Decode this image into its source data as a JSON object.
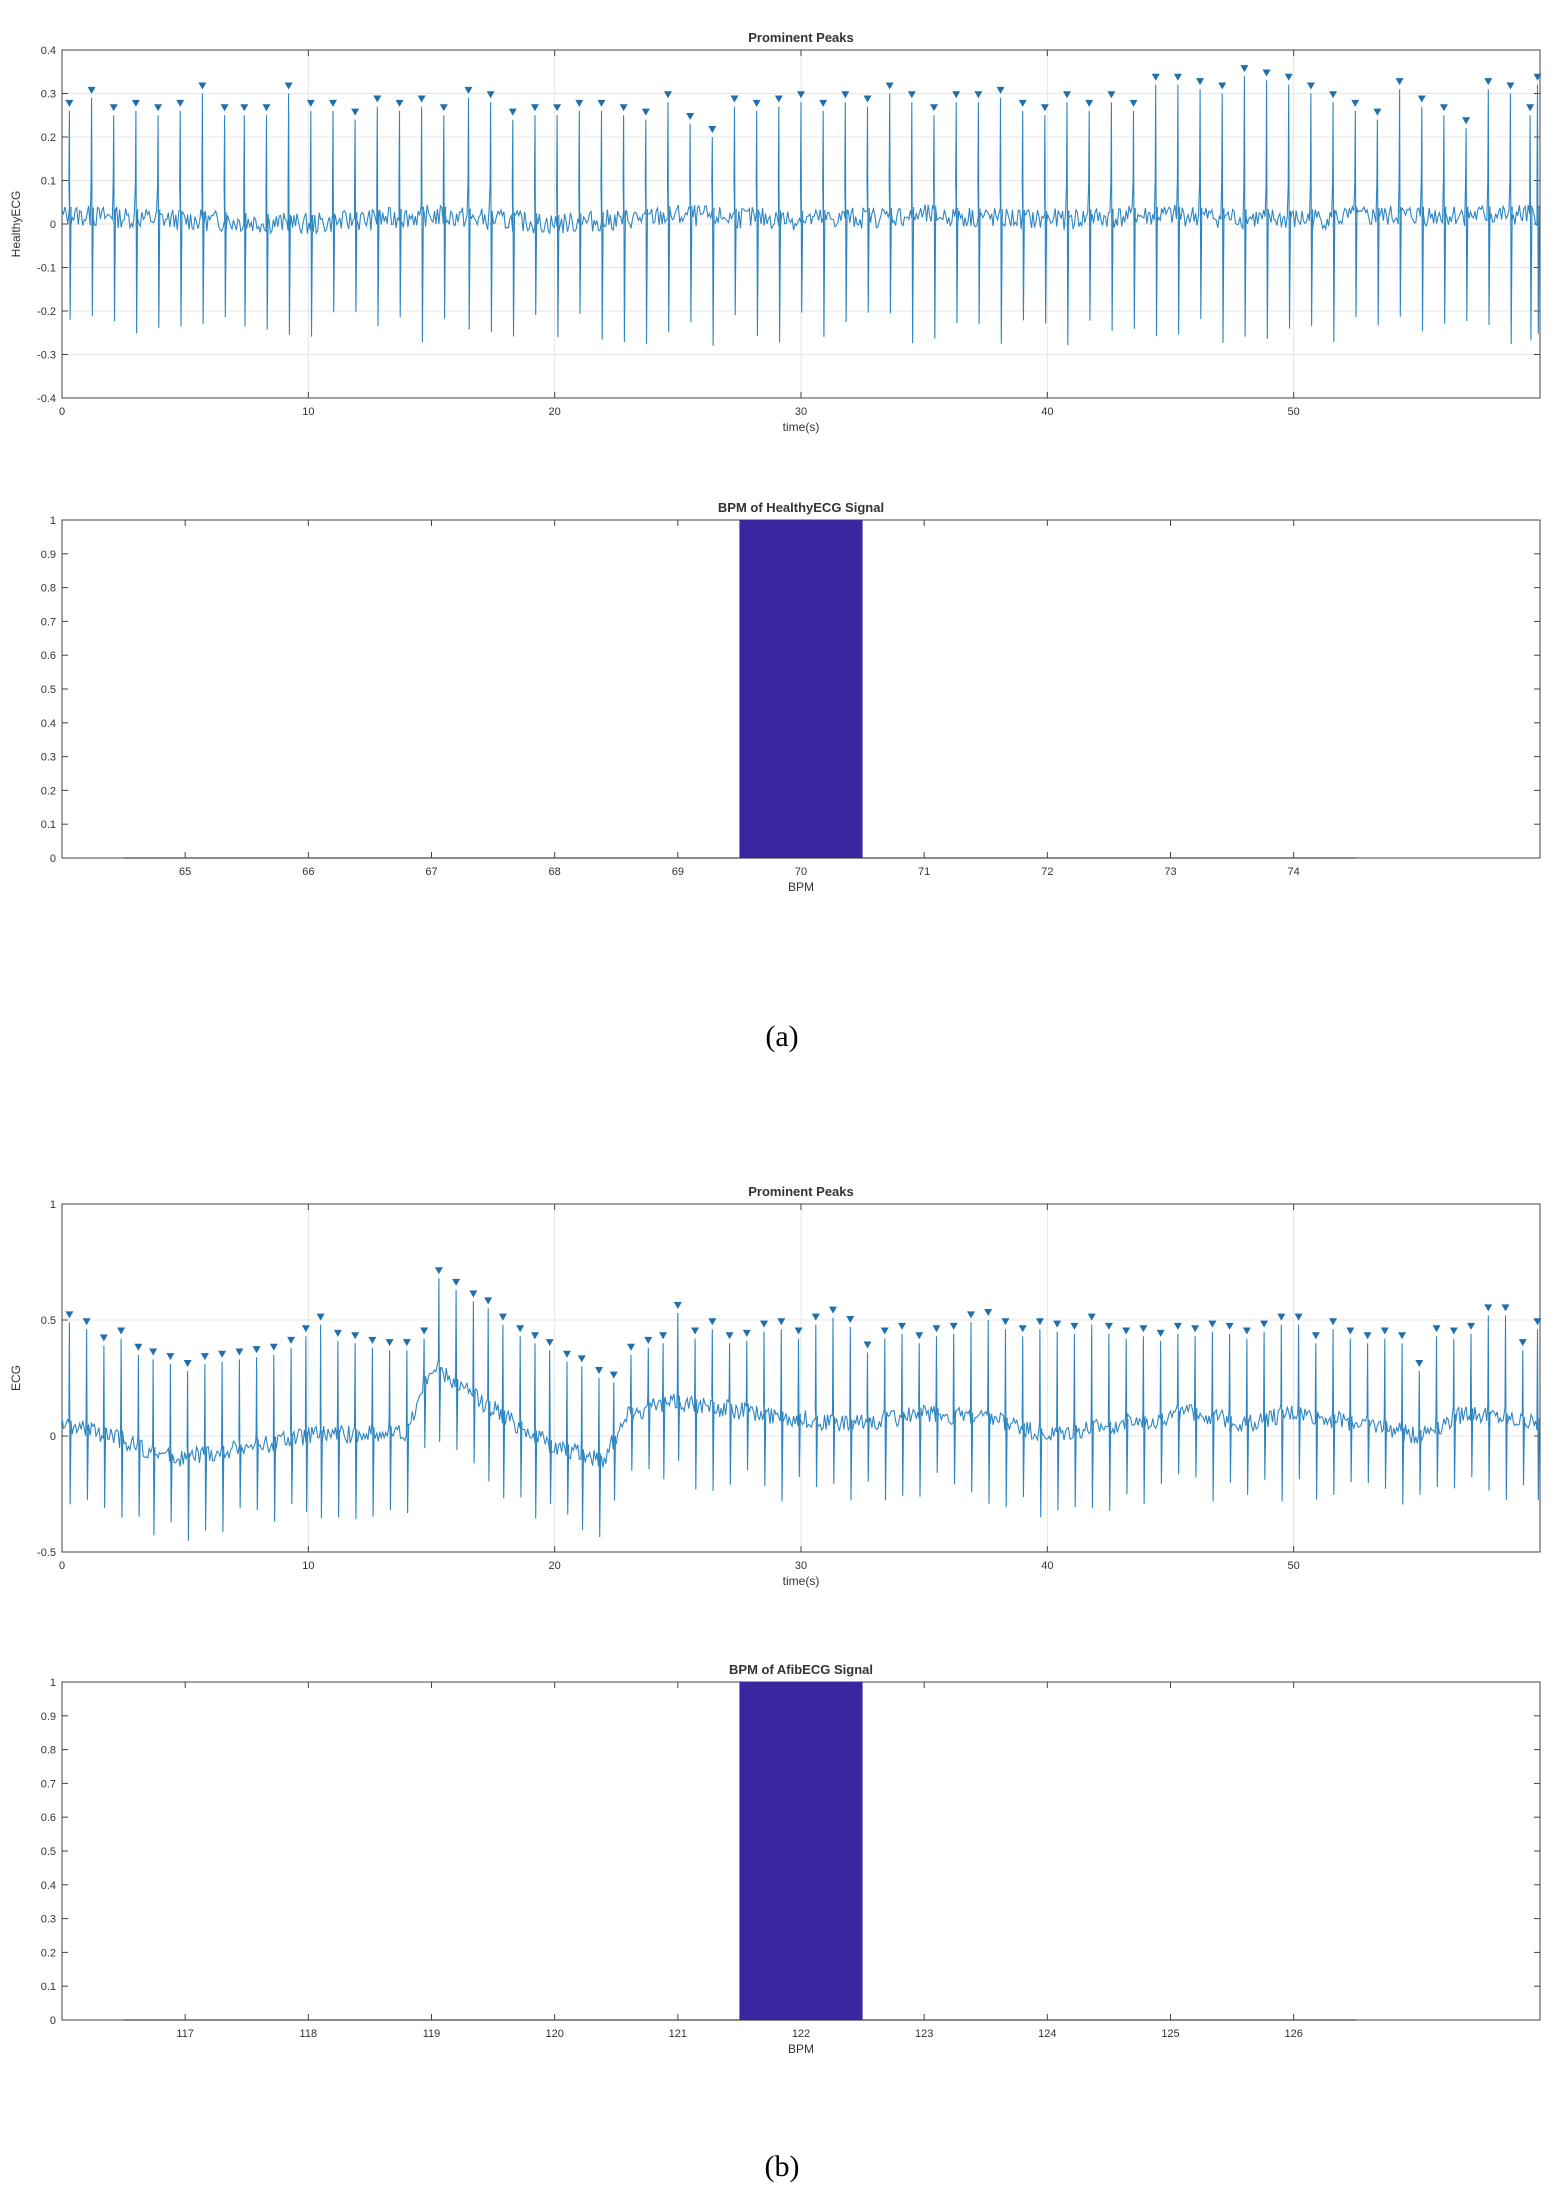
{
  "figure": {
    "caption_a": "(a)",
    "caption_b": "(b)"
  },
  "colors": {
    "signal": "#2e86c1",
    "marker": "#1f6fae",
    "bar": "#3b25a0",
    "grid": "#e6e6e6",
    "axis": "#444444",
    "text": "#333333"
  },
  "chart_data": [
    {
      "id": "healthy-ecg-peaks",
      "type": "line",
      "title": "Prominent Peaks",
      "xlabel": "time(s)",
      "ylabel": "HealthyECG",
      "xlim": [
        0,
        60
      ],
      "ylim": [
        -0.4,
        0.4
      ],
      "xticks": [
        0,
        10,
        20,
        30,
        40,
        50
      ],
      "yticks": [
        -0.4,
        -0.3,
        -0.2,
        -0.1,
        0,
        0.1,
        0.2,
        0.3,
        0.4
      ],
      "ytick_labels": [
        "-0.4",
        "-0.3",
        "-0.2",
        "-0.1",
        "0",
        "0.1",
        "0.2",
        "0.3",
        "0.4"
      ],
      "grid": true,
      "baseline": [
        [
          0,
          0.02
        ],
        [
          5,
          0.01
        ],
        [
          10,
          0.0
        ],
        [
          15,
          0.02
        ],
        [
          20,
          0.0
        ],
        [
          25,
          0.02
        ],
        [
          30,
          0.01
        ],
        [
          35,
          0.02
        ],
        [
          40,
          0.01
        ],
        [
          45,
          0.02
        ],
        [
          50,
          0.01
        ],
        [
          55,
          0.02
        ],
        [
          60,
          0.02
        ]
      ],
      "peaks": [
        [
          0.3,
          0.26
        ],
        [
          1.2,
          0.29
        ],
        [
          2.1,
          0.25
        ],
        [
          3.0,
          0.26
        ],
        [
          3.9,
          0.25
        ],
        [
          4.8,
          0.26
        ],
        [
          5.7,
          0.3
        ],
        [
          6.6,
          0.25
        ],
        [
          7.4,
          0.25
        ],
        [
          8.3,
          0.25
        ],
        [
          9.2,
          0.3
        ],
        [
          10.1,
          0.26
        ],
        [
          11.0,
          0.26
        ],
        [
          11.9,
          0.24
        ],
        [
          12.8,
          0.27
        ],
        [
          13.7,
          0.26
        ],
        [
          14.6,
          0.27
        ],
        [
          15.5,
          0.25
        ],
        [
          16.5,
          0.29
        ],
        [
          17.4,
          0.28
        ],
        [
          18.3,
          0.24
        ],
        [
          19.2,
          0.25
        ],
        [
          20.1,
          0.25
        ],
        [
          21.0,
          0.26
        ],
        [
          21.9,
          0.26
        ],
        [
          22.8,
          0.25
        ],
        [
          23.7,
          0.24
        ],
        [
          24.6,
          0.28
        ],
        [
          25.5,
          0.23
        ],
        [
          26.4,
          0.2
        ],
        [
          27.3,
          0.27
        ],
        [
          28.2,
          0.26
        ],
        [
          29.1,
          0.27
        ],
        [
          30.0,
          0.28
        ],
        [
          30.9,
          0.26
        ],
        [
          31.8,
          0.28
        ],
        [
          32.7,
          0.27
        ],
        [
          33.6,
          0.3
        ],
        [
          34.5,
          0.28
        ],
        [
          35.4,
          0.25
        ],
        [
          36.3,
          0.28
        ],
        [
          37.2,
          0.28
        ],
        [
          38.1,
          0.29
        ],
        [
          39.0,
          0.26
        ],
        [
          39.9,
          0.25
        ],
        [
          40.8,
          0.28
        ],
        [
          41.7,
          0.26
        ],
        [
          42.6,
          0.28
        ],
        [
          43.5,
          0.26
        ],
        [
          44.4,
          0.32
        ],
        [
          45.3,
          0.32
        ],
        [
          46.2,
          0.31
        ],
        [
          47.1,
          0.3
        ],
        [
          48.0,
          0.34
        ],
        [
          48.9,
          0.33
        ],
        [
          49.8,
          0.32
        ],
        [
          50.7,
          0.3
        ],
        [
          51.6,
          0.28
        ],
        [
          52.5,
          0.26
        ],
        [
          53.4,
          0.24
        ],
        [
          54.3,
          0.31
        ],
        [
          55.2,
          0.27
        ],
        [
          56.1,
          0.25
        ],
        [
          57.0,
          0.22
        ],
        [
          57.9,
          0.31
        ],
        [
          58.8,
          0.3
        ],
        [
          59.6,
          0.25
        ],
        [
          59.9,
          0.32
        ]
      ]
    },
    {
      "id": "healthy-bpm",
      "type": "bar",
      "title": "BPM of HealthyECG Signal",
      "xlabel": "BPM",
      "ylabel": "",
      "xlim": [
        64,
        76
      ],
      "ylim": [
        0,
        1
      ],
      "xticks": [
        65,
        66,
        67,
        68,
        69,
        70,
        71,
        72,
        73,
        74
      ],
      "yticks": [
        0,
        0.1,
        0.2,
        0.3,
        0.4,
        0.5,
        0.6,
        0.7,
        0.8,
        0.9,
        1
      ],
      "ytick_labels": [
        "0",
        "0.1",
        "0.2",
        "0.3",
        "0.4",
        "0.5",
        "0.6",
        "0.7",
        "0.8",
        "0.9",
        "1"
      ],
      "grid": false,
      "bars": [
        {
          "x": 70,
          "value": 1,
          "width": 1
        }
      ],
      "baseline_range": [
        64.5,
        74.5
      ]
    },
    {
      "id": "afib-ecg-peaks",
      "type": "line",
      "title": "Prominent Peaks",
      "xlabel": "time(s)",
      "ylabel": "ECG",
      "xlim": [
        0,
        60
      ],
      "ylim": [
        -0.5,
        1
      ],
      "xticks": [
        0,
        10,
        20,
        30,
        40,
        50
      ],
      "yticks": [
        -0.5,
        0,
        0.5,
        1
      ],
      "ytick_labels": [
        "-0.5",
        "0",
        "0.5",
        "1"
      ],
      "grid": true,
      "baseline": [
        [
          0,
          0.05
        ],
        [
          2,
          0.0
        ],
        [
          4.5,
          -0.1
        ],
        [
          6,
          -0.08
        ],
        [
          10,
          0.0
        ],
        [
          14,
          0.02
        ],
        [
          15,
          0.3
        ],
        [
          17,
          0.15
        ],
        [
          20,
          -0.05
        ],
        [
          22,
          -0.1
        ],
        [
          23,
          0.1
        ],
        [
          25,
          0.15
        ],
        [
          28,
          0.1
        ],
        [
          32,
          0.05
        ],
        [
          35,
          0.1
        ],
        [
          38,
          0.07
        ],
        [
          40,
          0.0
        ],
        [
          43,
          0.05
        ],
        [
          46,
          0.1
        ],
        [
          48,
          0.05
        ],
        [
          50,
          0.1
        ],
        [
          53,
          0.05
        ],
        [
          55,
          0.0
        ],
        [
          57,
          0.1
        ],
        [
          60,
          0.05
        ]
      ],
      "peaks": [
        [
          0.3,
          0.49
        ],
        [
          1.0,
          0.46
        ],
        [
          1.7,
          0.39
        ],
        [
          2.4,
          0.42
        ],
        [
          3.1,
          0.35
        ],
        [
          3.7,
          0.33
        ],
        [
          4.4,
          0.31
        ],
        [
          5.1,
          0.28
        ],
        [
          5.8,
          0.31
        ],
        [
          6.5,
          0.32
        ],
        [
          7.2,
          0.33
        ],
        [
          7.9,
          0.34
        ],
        [
          8.6,
          0.35
        ],
        [
          9.3,
          0.38
        ],
        [
          9.9,
          0.43
        ],
        [
          10.5,
          0.48
        ],
        [
          11.2,
          0.41
        ],
        [
          11.9,
          0.4
        ],
        [
          12.6,
          0.38
        ],
        [
          13.3,
          0.37
        ],
        [
          14.0,
          0.37
        ],
        [
          14.7,
          0.42
        ],
        [
          15.3,
          0.68
        ],
        [
          16.0,
          0.63
        ],
        [
          16.7,
          0.58
        ],
        [
          17.3,
          0.55
        ],
        [
          17.9,
          0.48
        ],
        [
          18.6,
          0.43
        ],
        [
          19.2,
          0.4
        ],
        [
          19.8,
          0.37
        ],
        [
          20.5,
          0.32
        ],
        [
          21.1,
          0.3
        ],
        [
          21.8,
          0.25
        ],
        [
          22.4,
          0.23
        ],
        [
          23.1,
          0.35
        ],
        [
          23.8,
          0.38
        ],
        [
          24.4,
          0.4
        ],
        [
          25.0,
          0.53
        ],
        [
          25.7,
          0.42
        ],
        [
          26.4,
          0.46
        ],
        [
          27.1,
          0.4
        ],
        [
          27.8,
          0.41
        ],
        [
          28.5,
          0.45
        ],
        [
          29.2,
          0.46
        ],
        [
          29.9,
          0.42
        ],
        [
          30.6,
          0.48
        ],
        [
          31.3,
          0.51
        ],
        [
          32.0,
          0.47
        ],
        [
          32.7,
          0.36
        ],
        [
          33.4,
          0.42
        ],
        [
          34.1,
          0.44
        ],
        [
          34.8,
          0.4
        ],
        [
          35.5,
          0.43
        ],
        [
          36.2,
          0.44
        ],
        [
          36.9,
          0.49
        ],
        [
          37.6,
          0.5
        ],
        [
          38.3,
          0.46
        ],
        [
          39.0,
          0.43
        ],
        [
          39.7,
          0.46
        ],
        [
          40.4,
          0.45
        ],
        [
          41.1,
          0.44
        ],
        [
          41.8,
          0.48
        ],
        [
          42.5,
          0.44
        ],
        [
          43.2,
          0.42
        ],
        [
          43.9,
          0.43
        ],
        [
          44.6,
          0.41
        ],
        [
          45.3,
          0.44
        ],
        [
          46.0,
          0.43
        ],
        [
          46.7,
          0.45
        ],
        [
          47.4,
          0.44
        ],
        [
          48.1,
          0.42
        ],
        [
          48.8,
          0.45
        ],
        [
          49.5,
          0.48
        ],
        [
          50.2,
          0.48
        ],
        [
          50.9,
          0.4
        ],
        [
          51.6,
          0.46
        ],
        [
          52.3,
          0.42
        ],
        [
          53.0,
          0.4
        ],
        [
          53.7,
          0.42
        ],
        [
          54.4,
          0.4
        ],
        [
          55.1,
          0.28
        ],
        [
          55.8,
          0.43
        ],
        [
          56.5,
          0.42
        ],
        [
          57.2,
          0.44
        ],
        [
          57.9,
          0.52
        ],
        [
          58.6,
          0.52
        ],
        [
          59.3,
          0.37
        ],
        [
          59.9,
          0.46
        ]
      ]
    },
    {
      "id": "afib-bpm",
      "type": "bar",
      "title": "BPM of AfibECG Signal",
      "xlabel": "BPM",
      "ylabel": "",
      "xlim": [
        116,
        128
      ],
      "ylim": [
        0,
        1
      ],
      "xticks": [
        117,
        118,
        119,
        120,
        121,
        122,
        123,
        124,
        125,
        126
      ],
      "yticks": [
        0,
        0.1,
        0.2,
        0.3,
        0.4,
        0.5,
        0.6,
        0.7,
        0.8,
        0.9,
        1
      ],
      "ytick_labels": [
        "0",
        "0.1",
        "0.2",
        "0.3",
        "0.4",
        "0.5",
        "0.6",
        "0.7",
        "0.8",
        "0.9",
        "1"
      ],
      "grid": false,
      "bars": [
        {
          "x": 122,
          "value": 1,
          "width": 1
        }
      ],
      "baseline_range": [
        116.5,
        126.5
      ]
    }
  ]
}
